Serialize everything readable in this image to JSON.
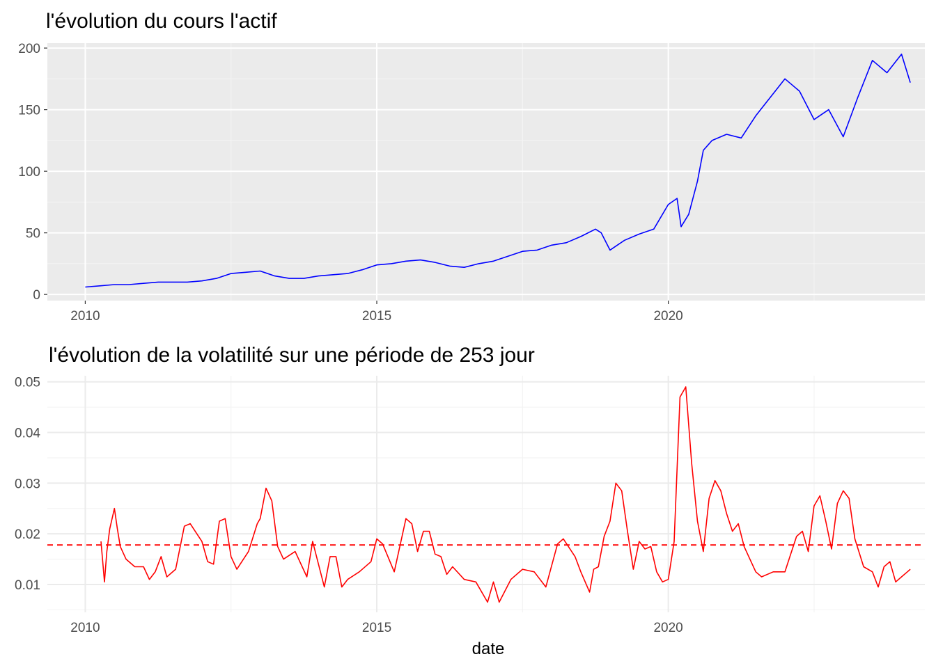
{
  "chart_data": [
    {
      "type": "line",
      "title": "l'évolution du cours l'actif",
      "xlabel": "",
      "ylabel": "",
      "x_ticks": [
        "2010",
        "2015",
        "2020"
      ],
      "y_ticks": [
        "0",
        "50",
        "100",
        "150",
        "200"
      ],
      "xlim": [
        2009.35,
        2024.4
      ],
      "ylim": [
        -5,
        204
      ],
      "theme": "grey-panel",
      "grid": true,
      "line_color": "#0000FF",
      "series": [
        {
          "x": [
            2010.0,
            2010.25,
            2010.5,
            2010.75,
            2011.0,
            2011.25,
            2011.5,
            2011.75,
            2012.0,
            2012.25,
            2012.5,
            2012.75,
            2013.0,
            2013.25,
            2013.5,
            2013.75,
            2014.0,
            2014.25,
            2014.5,
            2014.75,
            2015.0,
            2015.25,
            2015.5,
            2015.75,
            2016.0,
            2016.25,
            2016.5,
            2016.75,
            2017.0,
            2017.25,
            2017.5,
            2017.75,
            2018.0,
            2018.25,
            2018.5,
            2018.75,
            2018.85,
            2019.0,
            2019.25,
            2019.5,
            2019.75,
            2020.0,
            2020.15,
            2020.22,
            2020.35,
            2020.5,
            2020.6,
            2020.75,
            2021.0,
            2021.25,
            2021.5,
            2021.75,
            2022.0,
            2022.25,
            2022.5,
            2022.75,
            2023.0,
            2023.25,
            2023.5,
            2023.75,
            2024.0,
            2024.15
          ],
          "values": [
            6,
            7,
            8,
            8,
            9,
            10,
            10,
            10,
            11,
            13,
            17,
            18,
            19,
            15,
            13,
            13,
            15,
            16,
            17,
            20,
            24,
            25,
            27,
            28,
            26,
            23,
            22,
            25,
            27,
            31,
            35,
            36,
            40,
            42,
            47,
            53,
            50,
            36,
            44,
            49,
            53,
            73,
            78,
            55,
            65,
            92,
            117,
            125,
            130,
            127,
            145,
            160,
            175,
            165,
            142,
            150,
            128,
            160,
            190,
            180,
            195,
            172
          ]
        }
      ]
    },
    {
      "type": "line",
      "title": "l'évolution de la volatilité sur une période de 253 jour",
      "xlabel": "date",
      "ylabel": "",
      "x_ticks": [
        "2010",
        "2015",
        "2020"
      ],
      "y_ticks": [
        "0.01",
        "0.02",
        "0.03",
        "0.04",
        "0.05"
      ],
      "xlim": [
        2009.35,
        2024.4
      ],
      "ylim": [
        0.0045,
        0.0512
      ],
      "theme": "minimal",
      "grid": true,
      "line_color": "#FF0000",
      "hline": {
        "value": 0.0178,
        "style": "dashed",
        "color": "#FF0000"
      },
      "series": [
        {
          "x": [
            2010.27,
            2010.33,
            2010.37,
            2010.42,
            2010.5,
            2010.55,
            2010.6,
            2010.7,
            2010.85,
            2011.0,
            2011.1,
            2011.2,
            2011.3,
            2011.4,
            2011.55,
            2011.7,
            2011.8,
            2012.0,
            2012.1,
            2012.2,
            2012.3,
            2012.4,
            2012.5,
            2012.6,
            2012.8,
            2012.95,
            2013.0,
            2013.1,
            2013.2,
            2013.3,
            2013.4,
            2013.6,
            2013.8,
            2013.9,
            2014.1,
            2014.2,
            2014.3,
            2014.4,
            2014.5,
            2014.7,
            2014.9,
            2015.0,
            2015.1,
            2015.3,
            2015.5,
            2015.6,
            2015.7,
            2015.8,
            2015.9,
            2016.0,
            2016.1,
            2016.2,
            2016.3,
            2016.5,
            2016.7,
            2016.9,
            2017.0,
            2017.1,
            2017.3,
            2017.5,
            2017.7,
            2017.9,
            2018.1,
            2018.2,
            2018.4,
            2018.5,
            2018.65,
            2018.72,
            2018.8,
            2018.9,
            2019.0,
            2019.1,
            2019.2,
            2019.3,
            2019.4,
            2019.5,
            2019.6,
            2019.7,
            2019.8,
            2019.9,
            2020.0,
            2020.1,
            2020.2,
            2020.3,
            2020.4,
            2020.5,
            2020.6,
            2020.7,
            2020.8,
            2020.9,
            2021.0,
            2021.1,
            2021.2,
            2021.3,
            2021.4,
            2021.5,
            2021.6,
            2021.8,
            2022.0,
            2022.1,
            2022.2,
            2022.3,
            2022.4,
            2022.5,
            2022.6,
            2022.7,
            2022.8,
            2022.9,
            2023.0,
            2023.1,
            2023.2,
            2023.35,
            2023.5,
            2023.6,
            2023.7,
            2023.8,
            2023.9,
            2024.0,
            2024.1,
            2024.15
          ],
          "values": [
            0.0185,
            0.0105,
            0.0165,
            0.021,
            0.025,
            0.021,
            0.0175,
            0.015,
            0.0135,
            0.0135,
            0.011,
            0.0125,
            0.0155,
            0.0115,
            0.013,
            0.0215,
            0.022,
            0.0185,
            0.0145,
            0.014,
            0.0225,
            0.023,
            0.0155,
            0.013,
            0.0165,
            0.022,
            0.023,
            0.029,
            0.0265,
            0.0175,
            0.015,
            0.0165,
            0.0115,
            0.0185,
            0.0095,
            0.0155,
            0.0155,
            0.0095,
            0.011,
            0.0125,
            0.0145,
            0.019,
            0.018,
            0.0125,
            0.023,
            0.022,
            0.0165,
            0.0205,
            0.0205,
            0.016,
            0.0155,
            0.012,
            0.0135,
            0.011,
            0.0105,
            0.0065,
            0.0105,
            0.0065,
            0.011,
            0.013,
            0.0125,
            0.0095,
            0.018,
            0.019,
            0.0155,
            0.0125,
            0.0085,
            0.013,
            0.0135,
            0.0195,
            0.0225,
            0.03,
            0.0285,
            0.0205,
            0.013,
            0.0185,
            0.017,
            0.0175,
            0.0125,
            0.0105,
            0.011,
            0.0185,
            0.047,
            0.049,
            0.034,
            0.0225,
            0.0165,
            0.027,
            0.0305,
            0.0285,
            0.024,
            0.0205,
            0.022,
            0.0175,
            0.015,
            0.0125,
            0.0115,
            0.0125,
            0.0125,
            0.016,
            0.0195,
            0.0205,
            0.0165,
            0.0255,
            0.0275,
            0.0225,
            0.017,
            0.026,
            0.0285,
            0.027,
            0.019,
            0.0135,
            0.0125,
            0.0095,
            0.0135,
            0.0145,
            0.0105,
            0.0115,
            0.0125,
            0.013
          ]
        }
      ]
    }
  ]
}
